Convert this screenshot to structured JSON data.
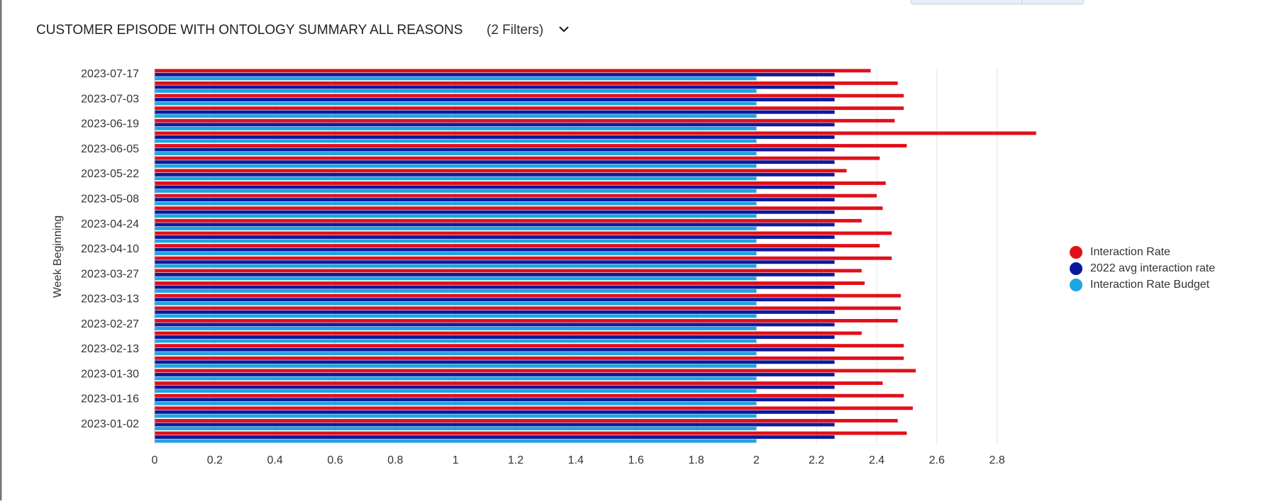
{
  "chart_data": {
    "type": "bar",
    "orientation": "horizontal",
    "title": "CUSTOMER EPISODE WITH ONTOLOGY SUMMARY ALL REASONS",
    "subtitle": "(2 Filters)",
    "y_label": "Week Beginning",
    "categories": [
      "2023-07-17",
      null,
      "2023-07-03",
      null,
      "2023-06-19",
      null,
      "2023-06-05",
      null,
      "2023-05-22",
      null,
      "2023-05-08",
      null,
      "2023-04-24",
      null,
      "2023-04-10",
      null,
      "2023-03-27",
      null,
      "2023-03-13",
      null,
      "2023-02-27",
      null,
      "2023-02-13",
      null,
      "2023-01-30",
      null,
      "2023-01-16",
      null,
      "2023-01-02",
      null
    ],
    "series": [
      {
        "name": "Interaction Rate",
        "color": "#e0101a",
        "values": [
          2.38,
          2.47,
          2.49,
          2.49,
          2.46,
          2.93,
          2.5,
          2.41,
          2.3,
          2.43,
          2.4,
          2.42,
          2.35,
          2.45,
          2.41,
          2.45,
          2.35,
          2.36,
          2.48,
          2.48,
          2.47,
          2.35,
          2.49,
          2.49,
          2.53,
          2.42,
          2.49,
          2.52,
          2.47,
          2.5
        ]
      },
      {
        "name": "2022 avg interaction rate",
        "color": "#0b1a9c",
        "values": [
          2.26,
          2.26,
          2.26,
          2.26,
          2.26,
          2.26,
          2.26,
          2.26,
          2.26,
          2.26,
          2.26,
          2.26,
          2.26,
          2.26,
          2.26,
          2.26,
          2.26,
          2.26,
          2.26,
          2.26,
          2.26,
          2.26,
          2.26,
          2.26,
          2.26,
          2.26,
          2.26,
          2.26,
          2.26,
          2.26
        ]
      },
      {
        "name": "Interaction Rate Budget",
        "color": "#1fa5e0",
        "values": [
          2,
          2,
          2,
          2,
          2,
          2,
          2,
          2,
          2,
          2,
          2,
          2,
          2,
          2,
          2,
          2,
          2,
          2,
          2,
          2,
          2,
          2,
          2,
          2,
          2,
          2,
          2,
          2,
          2,
          2
        ]
      }
    ],
    "xlim": [
      0,
      2.94
    ],
    "xticks": [
      0,
      0.2,
      0.4,
      0.6,
      0.8,
      1,
      1.2,
      1.4,
      1.6,
      1.8,
      2,
      2.2,
      2.4,
      2.6,
      2.8
    ],
    "grid": true,
    "legend": "right"
  }
}
